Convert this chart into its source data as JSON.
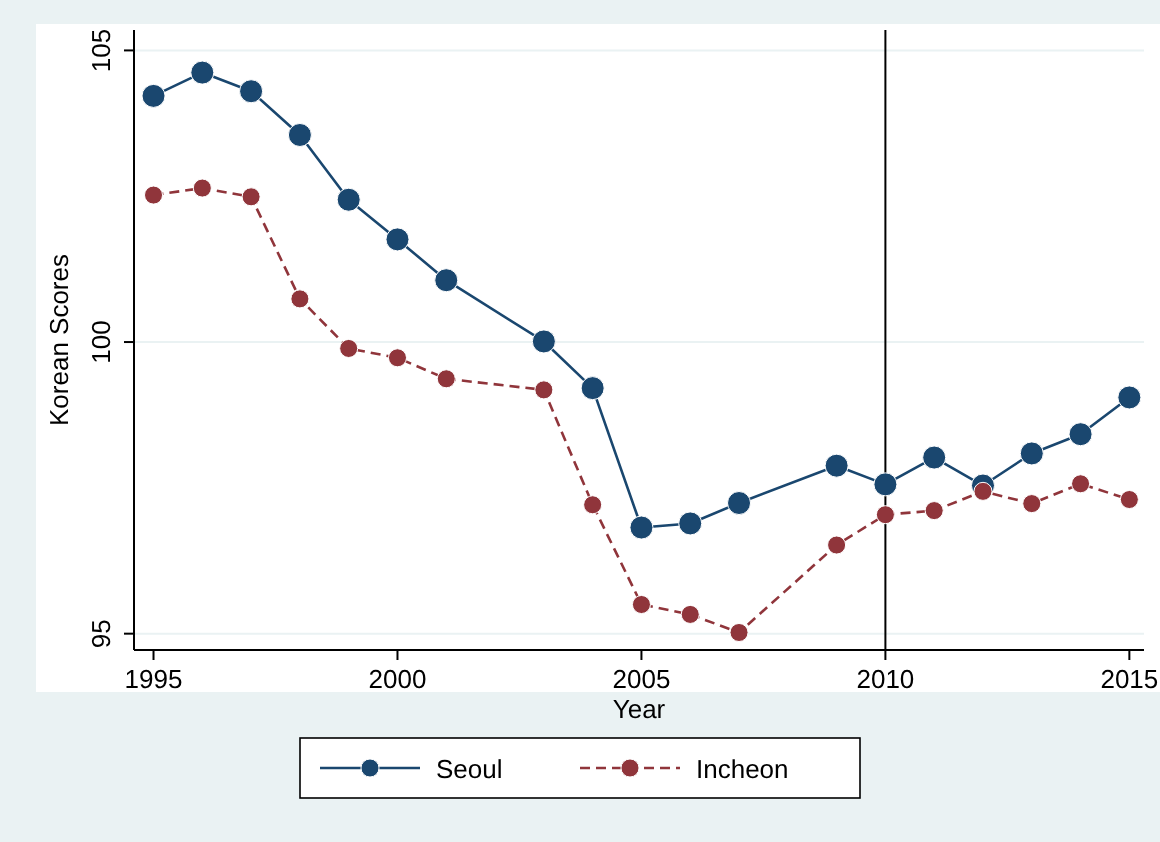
{
  "chart_data": {
    "type": "line",
    "xlabel": "Year",
    "ylabel": "Korean Scores",
    "x": [
      1995,
      1996,
      1997,
      1998,
      1999,
      2000,
      2001,
      2003,
      2004,
      2005,
      2006,
      2007,
      2009,
      2010,
      2011,
      2012,
      2013,
      2014,
      2015
    ],
    "series": [
      {
        "name": "Seoul",
        "color": "#1a476f",
        "line_style": "solid",
        "values": [
          104.22,
          104.62,
          104.3,
          103.55,
          102.44,
          101.76,
          101.06,
          100.01,
          99.21,
          96.82,
          96.89,
          97.24,
          97.88,
          97.56,
          98.02,
          97.54,
          98.09,
          98.42,
          99.05
        ]
      },
      {
        "name": "Incheon",
        "color": "#90353b",
        "line_style": "dashed",
        "values": [
          102.52,
          102.64,
          102.49,
          100.74,
          99.89,
          99.73,
          99.37,
          99.18,
          97.21,
          95.5,
          95.33,
          95.02,
          96.52,
          97.04,
          97.11,
          97.44,
          97.23,
          97.57,
          97.3
        ]
      }
    ],
    "marker": "circle",
    "xlim": [
      1994.6,
      2015.3
    ],
    "xticks": [
      1995,
      2000,
      2005,
      2010,
      2015
    ],
    "ylim": [
      94.72,
      105.35
    ],
    "yticks": [
      95,
      100,
      105
    ],
    "grid": "y",
    "legend": "bottom",
    "ref_lines": [
      {
        "axis": "x",
        "value": 2010,
        "color": "#000000"
      }
    ]
  }
}
